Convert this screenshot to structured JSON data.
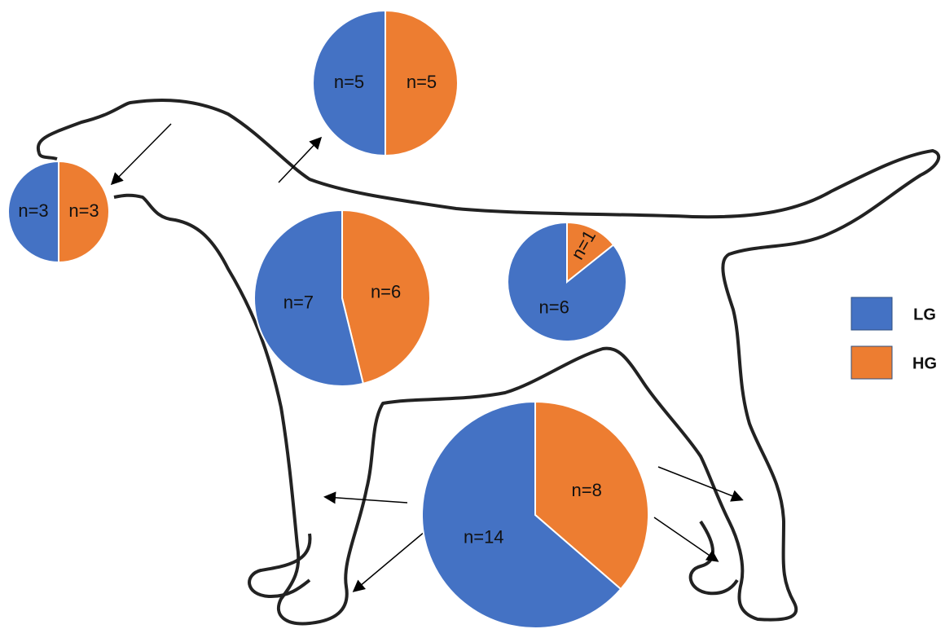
{
  "legend": [
    {
      "name": "LG",
      "color": "#4472c4"
    },
    {
      "name": "HG",
      "color": "#ed7d31"
    }
  ],
  "chart_data": [
    {
      "type": "pie",
      "values": [
        3,
        3
      ],
      "value_labels": [
        "n=3",
        "n=3"
      ]
    },
    {
      "type": "pie",
      "values": [
        5,
        5
      ],
      "value_labels": [
        "n=5",
        "n=5"
      ]
    },
    {
      "type": "pie",
      "values": [
        7,
        6
      ],
      "value_labels": [
        "n=7",
        "n=6"
      ]
    },
    {
      "type": "pie",
      "values": [
        6,
        1
      ],
      "value_labels": [
        "n=6",
        "n=1"
      ]
    },
    {
      "type": "pie",
      "values": [
        14,
        8
      ],
      "value_labels": [
        "n=14",
        "n=8"
      ]
    }
  ]
}
